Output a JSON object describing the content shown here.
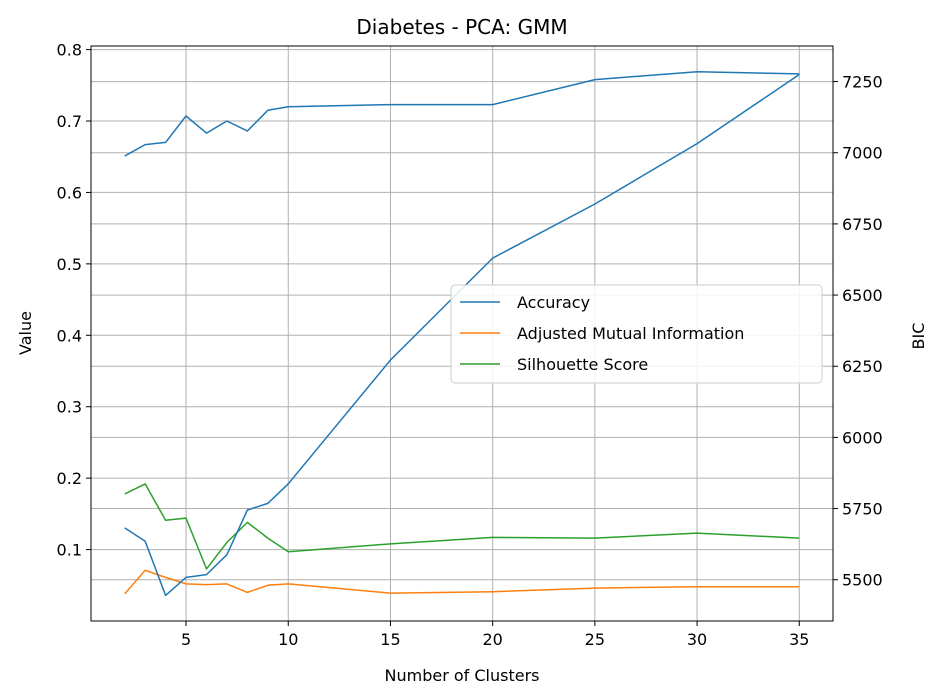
{
  "chart_data": {
    "type": "line",
    "title": "Diabetes - PCA: GMM",
    "xlabel": "Number of Clusters",
    "ylabel": "Value",
    "y2label": "BIC",
    "xlim": [
      0.35,
      36.65
    ],
    "ylim": [
      0.0,
      0.805
    ],
    "y2lim": [
      5355,
      7375
    ],
    "x_ticks": [
      5,
      10,
      15,
      20,
      25,
      30,
      35
    ],
    "y_ticks": [
      0.1,
      0.2,
      0.3,
      0.4,
      0.5,
      0.6,
      0.7,
      0.8
    ],
    "y2_ticks": [
      5500,
      5750,
      6000,
      6250,
      6500,
      6750,
      7000,
      7250
    ],
    "grid": true,
    "legend_position": "center-right",
    "x": [
      2,
      3,
      4,
      5,
      6,
      7,
      8,
      9,
      10,
      15,
      20,
      25,
      30,
      35
    ],
    "series": [
      {
        "name": "Accuracy",
        "color": "#1f77b4",
        "axis": "left",
        "values": [
          0.651,
          0.667,
          0.67,
          0.707,
          0.683,
          0.7,
          0.686,
          0.715,
          0.72,
          0.723,
          0.723,
          0.758,
          0.769,
          0.766
        ]
      },
      {
        "name": "Adjusted Mutual Information",
        "color": "#ff7f0e",
        "axis": "left",
        "values": [
          0.038,
          0.071,
          0.061,
          0.052,
          0.051,
          0.052,
          0.04,
          0.05,
          0.052,
          0.039,
          0.041,
          0.046,
          0.048,
          0.048
        ]
      },
      {
        "name": "Silhouette Score",
        "color": "#2ca02c",
        "axis": "left",
        "values": [
          0.178,
          0.192,
          0.141,
          0.144,
          0.073,
          0.11,
          0.138,
          0.116,
          0.097,
          0.108,
          0.117,
          0.116,
          0.123,
          0.116
        ]
      },
      {
        "name": "",
        "color": "#1f77b4",
        "axis": "right",
        "values": [
          5682,
          5635,
          5445,
          5508,
          5518,
          5588,
          5745,
          5768,
          5837,
          6272,
          6630,
          6820,
          7032,
          7275
        ]
      }
    ]
  }
}
